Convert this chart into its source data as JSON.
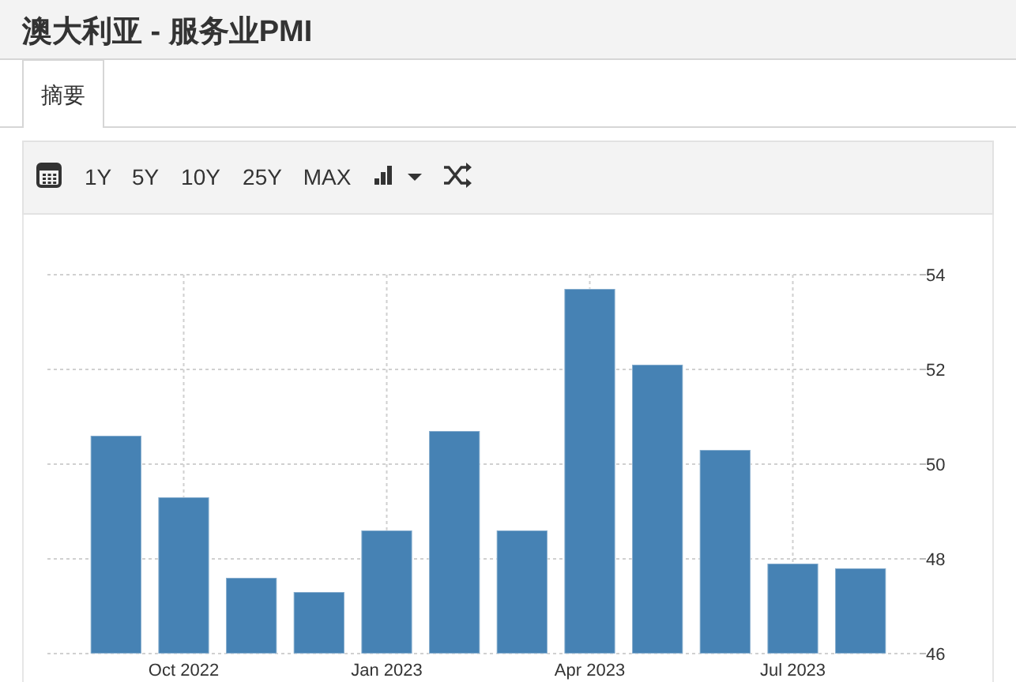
{
  "chart_data": {
    "type": "bar",
    "title": "澳大利亚 - 服务业PMI",
    "annotations": [
      "摘要",
      "1Y",
      "5Y",
      "10Y",
      "25Y",
      "MAX"
    ],
    "categories": [
      null,
      "Oct 2022",
      null,
      null,
      "Jan 2023",
      null,
      null,
      "Apr 2023",
      null,
      null,
      "Jul 2023",
      null
    ],
    "values": [
      50.6,
      49.3,
      47.6,
      47.3,
      48.6,
      50.7,
      48.6,
      53.7,
      52.1,
      50.3,
      47.9,
      47.8
    ],
    "color": "#4682b4",
    "ylim": [
      46,
      54
    ],
    "yticks": [
      46,
      48,
      50,
      52,
      54
    ],
    "grid": true
  }
}
